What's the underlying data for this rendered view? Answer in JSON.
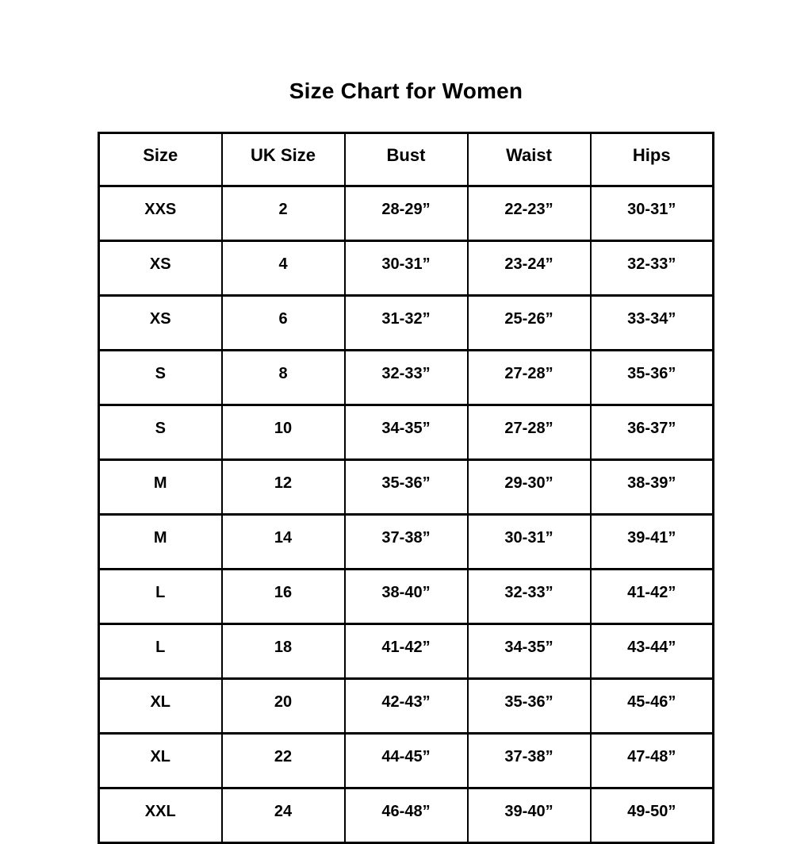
{
  "page": {
    "background_color": "#ffffff",
    "text_color": "#000000",
    "border_color": "#000000"
  },
  "chart_data": {
    "type": "table",
    "title": "Size Chart for Women",
    "columns": [
      "Size",
      "UK Size",
      "Bust",
      "Waist",
      "Hips"
    ],
    "rows": [
      [
        "XXS",
        "2",
        "28-29”",
        "22-23”",
        "30-31”"
      ],
      [
        "XS",
        "4",
        "30-31”",
        "23-24”",
        "32-33”"
      ],
      [
        "XS",
        "6",
        "31-32”",
        "25-26”",
        "33-34”"
      ],
      [
        "S",
        "8",
        "32-33”",
        "27-28”",
        "35-36”"
      ],
      [
        "S",
        "10",
        "34-35”",
        "27-28”",
        "36-37”"
      ],
      [
        "M",
        "12",
        "35-36”",
        "29-30”",
        "38-39”"
      ],
      [
        "M",
        "14",
        "37-38”",
        "30-31”",
        "39-41”"
      ],
      [
        "L",
        "16",
        "38-40”",
        "32-33”",
        "41-42”"
      ],
      [
        "L",
        "18",
        "41-42”",
        "34-35”",
        "43-44”"
      ],
      [
        "XL",
        "20",
        "42-43”",
        "35-36”",
        "45-46”"
      ],
      [
        "XL",
        "22",
        "44-45”",
        "37-38”",
        "47-48”"
      ],
      [
        "XXL",
        "24",
        "46-48”",
        "39-40”",
        "49-50”"
      ]
    ],
    "layout": {
      "grid": "full-borders",
      "header_row": true,
      "text_alignment": "center"
    }
  }
}
